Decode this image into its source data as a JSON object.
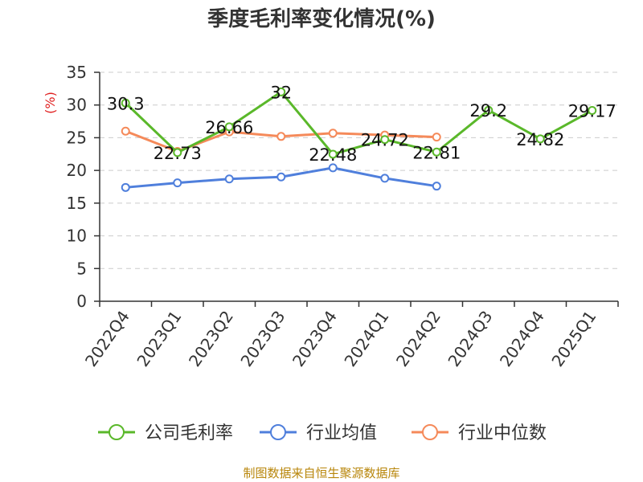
{
  "chart_data": {
    "type": "line",
    "title": "季度毛利率变化情况(%)",
    "ylabel": "(%)",
    "xlabel": "",
    "ylim": [
      0,
      35
    ],
    "yticks": [
      0,
      5,
      10,
      15,
      20,
      25,
      30,
      35
    ],
    "grid": true,
    "legend_position": "bottom",
    "categories": [
      "2022Q4",
      "2023Q1",
      "2023Q2",
      "2023Q3",
      "2023Q4",
      "2024Q1",
      "2024Q2",
      "2024Q3",
      "2024Q4",
      "2025Q1"
    ],
    "series": [
      {
        "name": "公司毛利率",
        "color": "#5ab82a",
        "values": [
          30.3,
          22.73,
          26.66,
          32,
          22.48,
          24.72,
          22.81,
          29.2,
          24.82,
          29.17
        ],
        "labels": [
          "30.3",
          "22.73",
          "26.66",
          "32",
          "22.48",
          "24.72",
          "22.81",
          "29.2",
          "24.82",
          "29.17"
        ]
      },
      {
        "name": "行业均值",
        "color": "#4f7fdc",
        "values": [
          17.4,
          18.1,
          18.7,
          19.0,
          20.4,
          18.8,
          17.6,
          null,
          null,
          null
        ]
      },
      {
        "name": "行业中位数",
        "color": "#f58a5a",
        "values": [
          26.0,
          22.9,
          25.9,
          25.2,
          25.7,
          25.4,
          25.1,
          null,
          null,
          null
        ]
      }
    ]
  },
  "source": "制图数据来自恒生聚源数据库"
}
